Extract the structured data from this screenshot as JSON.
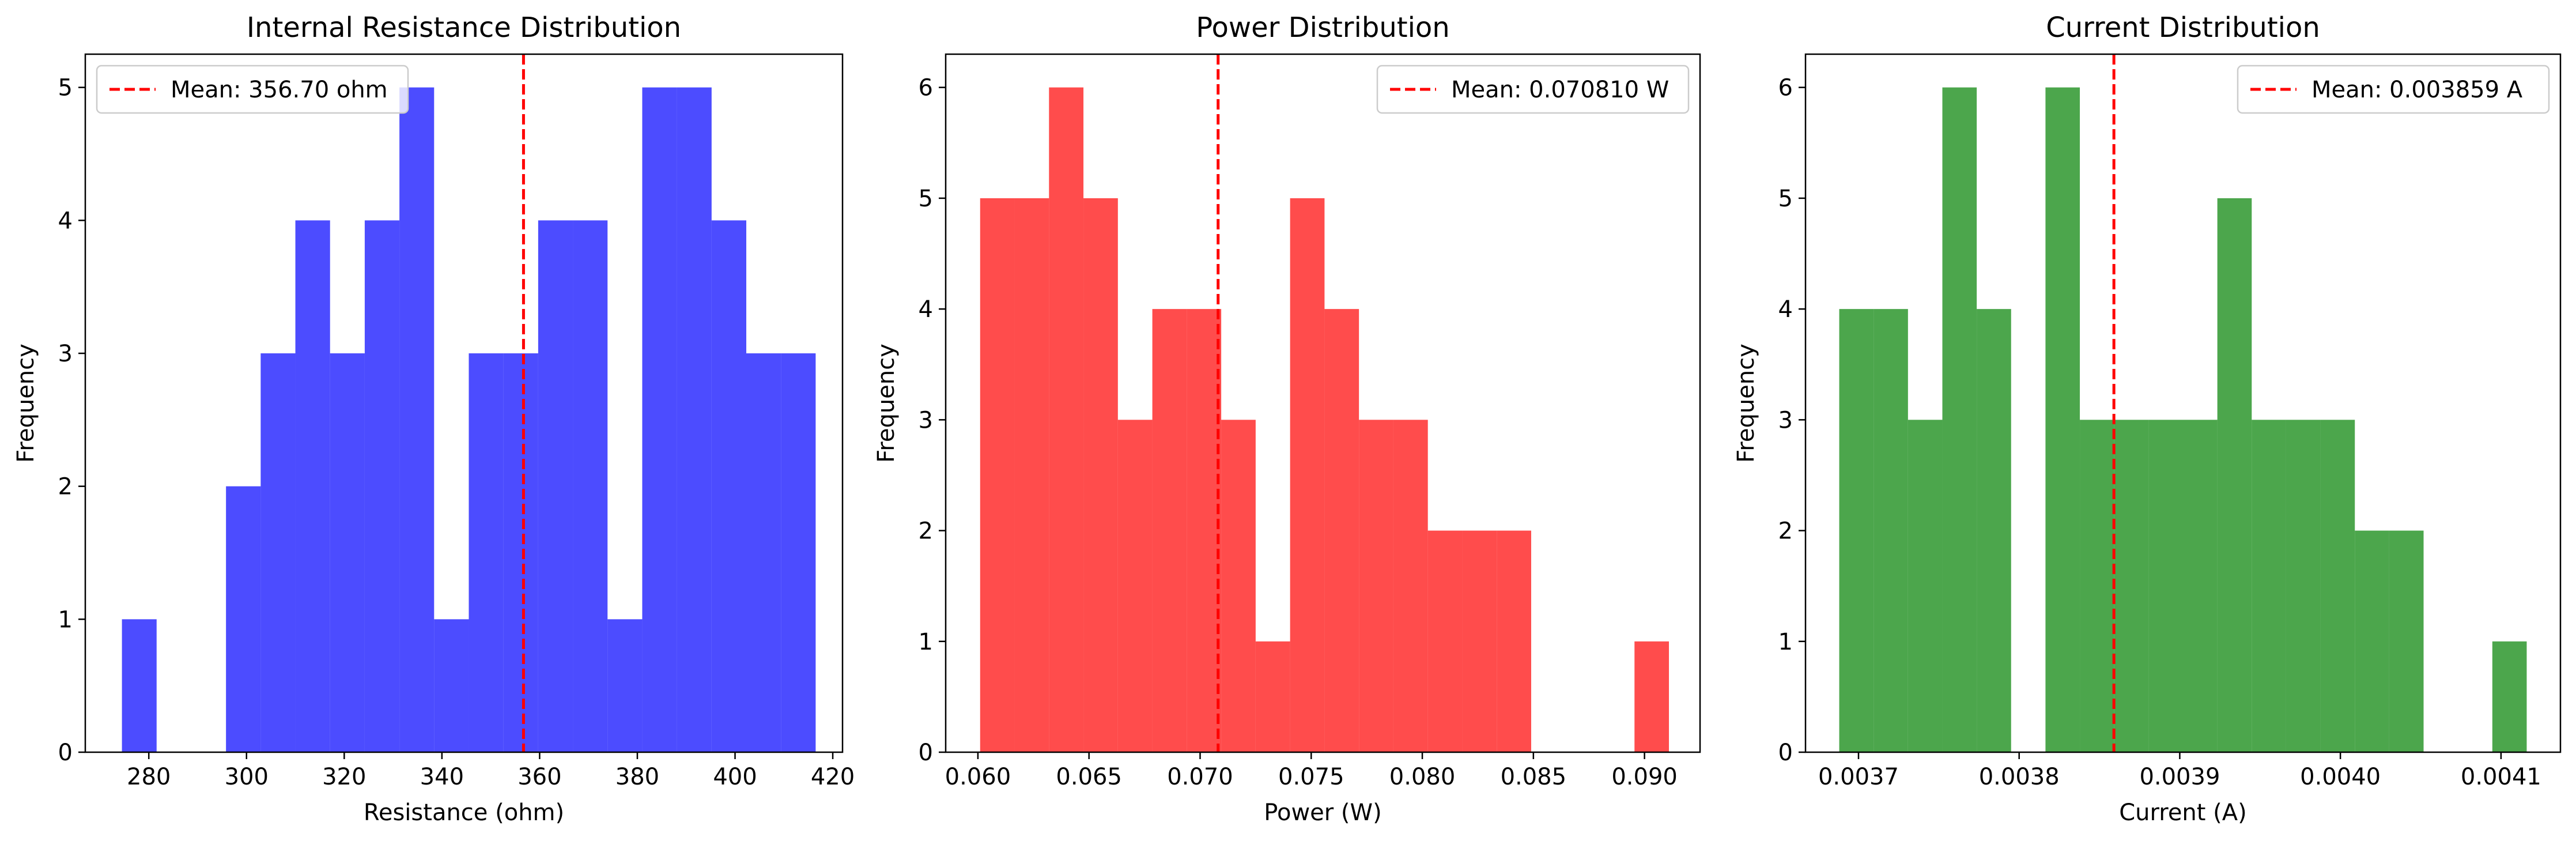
{
  "chart_data": [
    {
      "type": "bar",
      "title": "Internal Resistance Distribution",
      "xlabel": "Resistance (ohm)",
      "ylabel": "Frequency",
      "xlim": [
        267,
        422
      ],
      "ylim": [
        0,
        5.25
      ],
      "xticks": [
        280,
        300,
        320,
        340,
        360,
        380,
        400,
        420
      ],
      "yticks": [
        0,
        1,
        2,
        3,
        4,
        5
      ],
      "bin_start": 274.5,
      "bin_width": 7.1,
      "values": [
        1,
        0,
        0,
        2,
        3,
        4,
        3,
        4,
        5,
        1,
        3,
        3,
        4,
        4,
        1,
        5,
        5,
        4,
        3,
        3
      ],
      "color": "#0000ff",
      "mean": 356.7,
      "legend": "Mean: 356.70 ohm",
      "legend_position": "upper-left",
      "grid": false
    },
    {
      "type": "bar",
      "title": "Power Distribution",
      "xlabel": "Power (W)",
      "ylabel": "Frequency",
      "xlim": [
        0.05855,
        0.0925
      ],
      "ylim": [
        0,
        6.3
      ],
      "xticks": [
        0.06,
        0.065,
        0.07,
        0.075,
        0.08,
        0.085,
        0.09
      ],
      "yticks": [
        0,
        1,
        2,
        3,
        4,
        5,
        6
      ],
      "bin_start": 0.0601,
      "bin_width": 0.00155,
      "values": [
        5,
        5,
        6,
        5,
        3,
        4,
        4,
        3,
        1,
        5,
        4,
        3,
        3,
        2,
        2,
        2,
        0,
        0,
        0,
        1
      ],
      "color": "#ff0000",
      "mean": 0.07081,
      "legend": "Mean: 0.070810 W",
      "legend_position": "upper-right",
      "grid": false
    },
    {
      "type": "bar",
      "title": "Current Distribution",
      "xlabel": "Current (A)",
      "ylabel": "Frequency",
      "xlim": [
        0.003667,
        0.004137
      ],
      "ylim": [
        0,
        6.3
      ],
      "xticks": [
        0.0037,
        0.0038,
        0.0039,
        0.004,
        0.0041
      ],
      "yticks": [
        0,
        1,
        2,
        3,
        4,
        5,
        6
      ],
      "bin_start": 0.003688,
      "bin_width": 2.14e-05,
      "values": [
        4,
        4,
        3,
        6,
        4,
        0,
        6,
        3,
        3,
        3,
        3,
        5,
        3,
        3,
        3,
        2,
        2,
        0,
        0,
        1
      ],
      "color": "#008000",
      "mean": 0.003859,
      "legend": "Mean: 0.003859 A",
      "legend_position": "upper-right",
      "grid": false
    }
  ]
}
